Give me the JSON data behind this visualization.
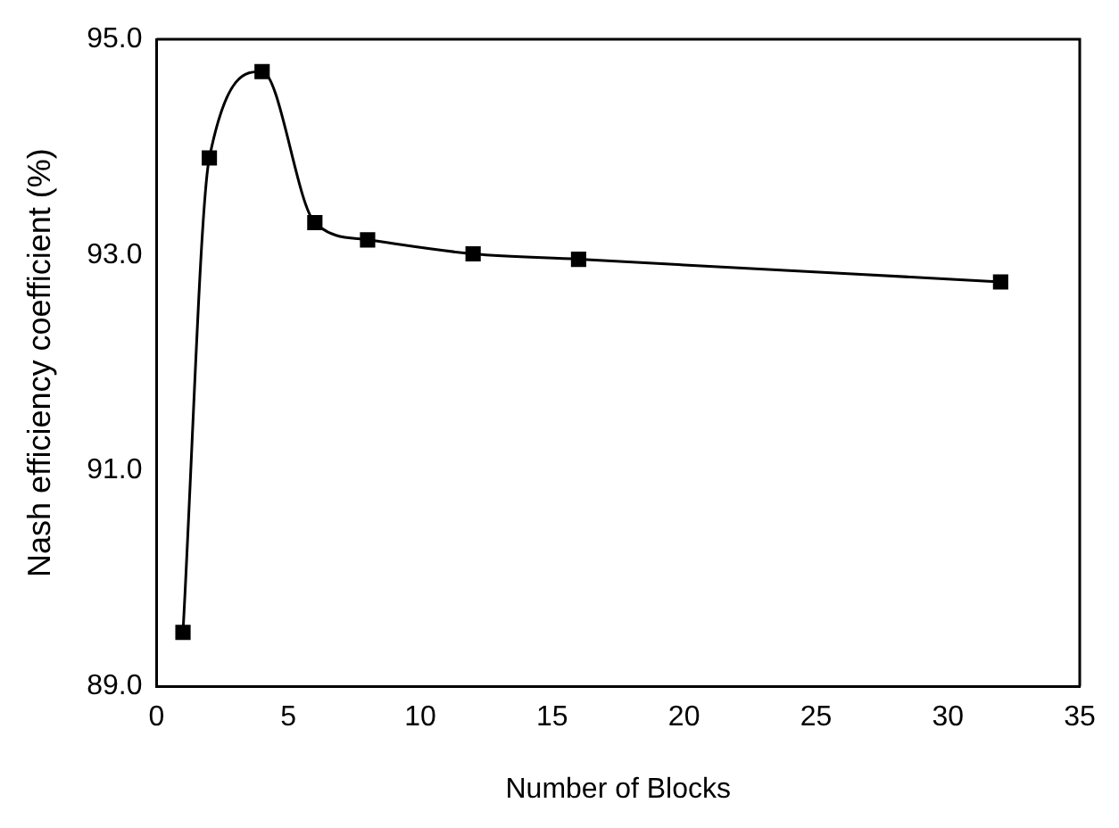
{
  "chart_data": {
    "type": "line",
    "xlabel": "Number of Blocks",
    "ylabel": "Nash efficiency coefficient (%)",
    "x": [
      1,
      2,
      4,
      6,
      8,
      12,
      16,
      32
    ],
    "series": [
      {
        "color": "#000000",
        "values": [
          89.5,
          93.9,
          94.7,
          93.3,
          93.14,
          93.01,
          92.96,
          92.75
        ]
      }
    ],
    "xlim": [
      0,
      35
    ],
    "xticks": [
      0,
      5,
      10,
      15,
      20,
      25,
      30,
      35
    ],
    "ylim": [
      89,
      95
    ],
    "yticks": [
      {
        "value": 89,
        "label": "89.0"
      },
      {
        "value": 91,
        "label": "91.0"
      },
      {
        "value": 93,
        "label": "93.0"
      },
      {
        "value": 95,
        "label": "95.0"
      }
    ],
    "grid": false,
    "legend": false,
    "marker": "square",
    "line_style": "solid"
  }
}
